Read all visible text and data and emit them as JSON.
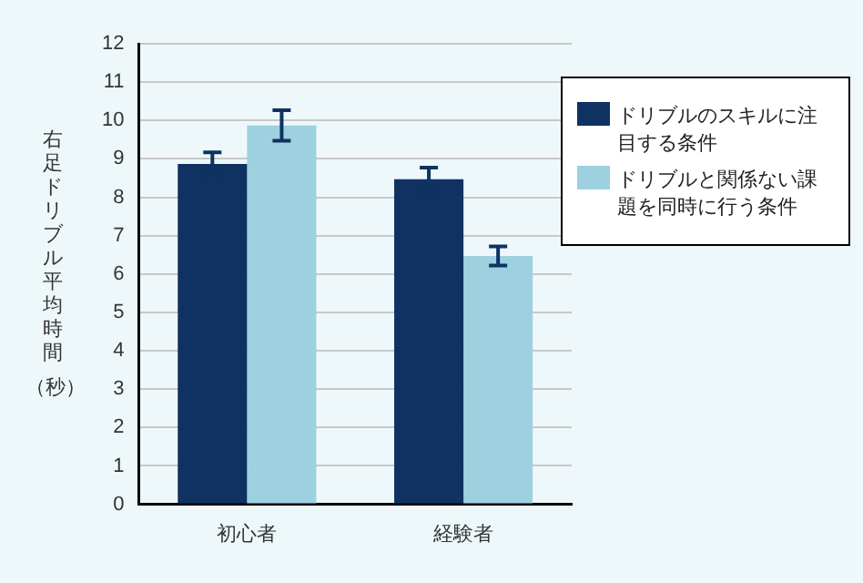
{
  "chart_data": {
    "type": "bar",
    "ylabel": "右足ドリブル平均時間（秒）",
    "categories": [
      "初心者",
      "経験者"
    ],
    "series": [
      {
        "name": "ドリブルのスキルに注目する条件",
        "color": "#0f3263",
        "values": [
          8.87,
          8.47
        ],
        "errors": [
          0.3,
          0.3
        ]
      },
      {
        "name": "ドリブルと関係ない課題を同時に行う条件",
        "color": "#9ed1df",
        "values": [
          9.87,
          6.47
        ],
        "errors": [
          0.4,
          0.25
        ]
      }
    ],
    "ylim": [
      0,
      12
    ],
    "yticks": [
      0,
      1,
      2,
      3,
      4,
      5,
      6,
      7,
      8,
      9,
      10,
      11,
      12
    ],
    "grid": "y",
    "legend": "top right"
  }
}
